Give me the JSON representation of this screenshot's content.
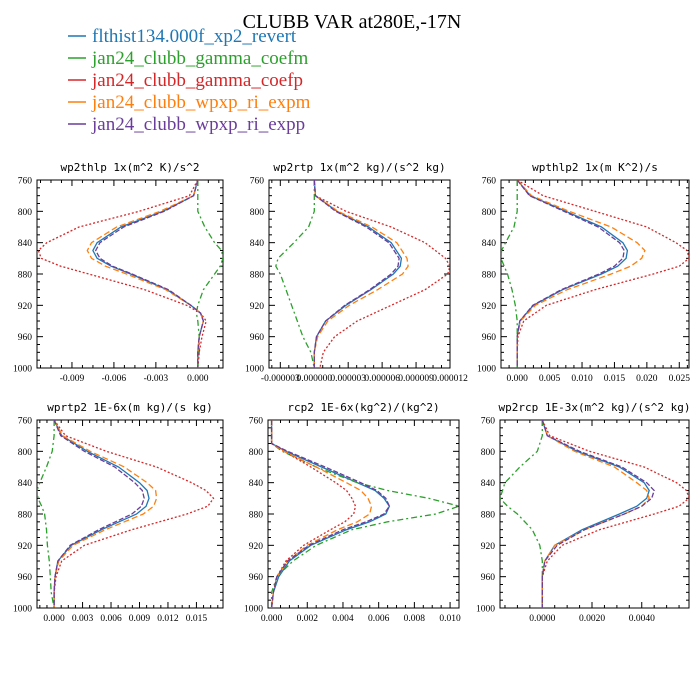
{
  "figure": {
    "title": "CLUBB VAR at280E,-17N"
  },
  "legend": [
    {
      "name": "flthist134.000f_xp2_revert",
      "color": "#1f77b4"
    },
    {
      "name": "jan24_clubb_gamma_coefm",
      "color": "#2ca02c"
    },
    {
      "name": "jan24_clubb_gamma_coefp",
      "color": "#d62728"
    },
    {
      "name": "jan24_clubb_wpxp_ri_expm",
      "color": "#ff7f0e"
    },
    {
      "name": "jan24_clubb_wpxp_ri_expp",
      "color": "#6a3d9a"
    }
  ],
  "chart_data": [
    {
      "type": "line",
      "title": "wp2thlp  1x(m^2 K)/s^2",
      "xlim": [
        -0.0115,
        0.0018
      ],
      "ylim": [
        760,
        1000
      ],
      "y_reversed": true,
      "xticks": [
        -0.009,
        -0.006,
        -0.003,
        0.0
      ],
      "xtick_labels": [
        "-0.009",
        "-0.006",
        "-0.003",
        "0.000"
      ],
      "yticks": [
        760,
        800,
        840,
        880,
        920,
        960,
        1000
      ],
      "y": [
        760,
        780,
        800,
        820,
        840,
        850,
        860,
        870,
        880,
        900,
        920,
        930,
        940,
        960,
        980,
        1000
      ],
      "series": [
        {
          "name": "flthist134.000f_xp2_revert",
          "color": "#1f77b4",
          "dash": "none",
          "x": [
            0.0,
            -0.0003,
            -0.0025,
            -0.0055,
            -0.0072,
            -0.0075,
            -0.0072,
            -0.0062,
            -0.0048,
            -0.0022,
            -0.0005,
            0.0002,
            0.0004,
            0.0001,
            0.0,
            0.0
          ]
        },
        {
          "name": "jan24_clubb_gamma_coefm",
          "color": "#2ca02c",
          "dash": "6,3,2,3",
          "x": [
            0.0,
            0.0,
            0.0,
            0.0005,
            0.0012,
            0.0017,
            0.0018,
            0.0016,
            0.0012,
            0.0004,
            0.0,
            -0.0001,
            0.0,
            0.0001,
            0.0001,
            0.0
          ]
        },
        {
          "name": "jan24_clubb_gamma_coefp",
          "color": "#d62728",
          "dash": "2,2",
          "x": [
            0.0,
            -0.0006,
            -0.0042,
            -0.0085,
            -0.0108,
            -0.0114,
            -0.0112,
            -0.0098,
            -0.0078,
            -0.0038,
            -0.0008,
            0.0002,
            0.0006,
            0.0003,
            0.0001,
            0.0
          ]
        },
        {
          "name": "jan24_clubb_wpxp_ri_expm",
          "color": "#ff7f0e",
          "dash": "6,3",
          "x": [
            0.0,
            -0.0003,
            -0.0027,
            -0.0058,
            -0.0076,
            -0.0079,
            -0.0076,
            -0.0066,
            -0.0051,
            -0.0023,
            -0.0005,
            0.0002,
            0.0004,
            0.0001,
            0.0,
            0.0
          ]
        },
        {
          "name": "jan24_clubb_wpxp_ri_expp",
          "color": "#6a3d9a",
          "dash": "5,2",
          "x": [
            0.0,
            -0.0003,
            -0.0024,
            -0.0053,
            -0.007,
            -0.0073,
            -0.007,
            -0.0061,
            -0.0047,
            -0.0021,
            -0.0005,
            0.0002,
            0.0004,
            0.0001,
            0.0,
            0.0
          ]
        }
      ]
    },
    {
      "type": "line",
      "title": "wp2rtp  1x(m^2 kg)/(s^2 kg)",
      "xlim": [
        -4e-06,
        1.2e-05
      ],
      "ylim": [
        760,
        1000
      ],
      "y_reversed": true,
      "xticks": [
        -3e-06,
        0.0,
        3e-06,
        6e-06,
        9e-06,
        1.2e-05
      ],
      "xtick_labels": [
        "-0.000003",
        "0.000000",
        "0.000003",
        "0.000006",
        "0.000009",
        "0.000012"
      ],
      "yticks": [
        760,
        800,
        840,
        880,
        920,
        960,
        1000
      ],
      "y": [
        760,
        780,
        800,
        820,
        840,
        860,
        870,
        880,
        900,
        920,
        940,
        960,
        980,
        1000
      ],
      "series": [
        {
          "name": "flthist134.000f_xp2_revert",
          "color": "#1f77b4",
          "dash": "none",
          "x": [
            0.0,
            1e-07,
            2e-06,
            4.8e-06,
            6.8e-06,
            7.7e-06,
            7.6e-06,
            7e-06,
            5e-06,
            2.8e-06,
            1e-06,
            2e-07,
            0.0,
            0.0
          ]
        },
        {
          "name": "jan24_clubb_gamma_coefm",
          "color": "#2ca02c",
          "dash": "6,3,2,3",
          "x": [
            0.0,
            0.0,
            0.0,
            -5e-07,
            -1.8e-06,
            -3.2e-06,
            -3.4e-06,
            -3e-06,
            -2.5e-06,
            -2e-06,
            -1.5e-06,
            -1e-06,
            -3e-07,
            0.0
          ]
        },
        {
          "name": "jan24_clubb_gamma_coefp",
          "color": "#d62728",
          "dash": "2,2",
          "x": [
            0.0,
            1e-07,
            2.8e-06,
            6.8e-06,
            9.8e-06,
            1.16e-05,
            1.2e-05,
            1.18e-05,
            9.8e-06,
            6.8e-06,
            3.8e-06,
            1.8e-06,
            8e-07,
            5e-07
          ]
        },
        {
          "name": "jan24_clubb_wpxp_ri_expm",
          "color": "#ff7f0e",
          "dash": "6,3",
          "x": [
            0.0,
            1e-07,
            2.1e-06,
            5.1e-06,
            7.3e-06,
            8.2e-06,
            8.3e-06,
            7.8e-06,
            5.6e-06,
            3.1e-06,
            1.2e-06,
            3e-07,
            0.0,
            0.0
          ]
        },
        {
          "name": "jan24_clubb_wpxp_ri_expp",
          "color": "#6a3d9a",
          "dash": "5,2",
          "x": [
            0.0,
            1e-07,
            1.9e-06,
            4.6e-06,
            6.6e-06,
            7.5e-06,
            7.4e-06,
            6.8e-06,
            4.9e-06,
            2.7e-06,
            1e-06,
            2e-07,
            0.0,
            0.0
          ]
        }
      ]
    },
    {
      "type": "line",
      "title": "wpthlp2  1x(m K^2)/s",
      "xlim": [
        -0.0025,
        0.0265
      ],
      "ylim": [
        760,
        1000
      ],
      "y_reversed": true,
      "xticks": [
        0.0,
        0.005,
        0.01,
        0.015,
        0.02,
        0.025
      ],
      "xtick_labels": [
        "0.000",
        "0.005",
        "0.010",
        "0.015",
        "0.020",
        "0.025"
      ],
      "yticks": [
        760,
        800,
        840,
        880,
        920,
        960,
        1000
      ],
      "y": [
        760,
        780,
        800,
        820,
        840,
        850,
        860,
        870,
        880,
        900,
        920,
        940,
        960,
        980,
        1000
      ],
      "series": [
        {
          "name": "flthist134.000f_xp2_revert",
          "color": "#1f77b4",
          "dash": "none",
          "x": [
            0.0,
            0.002,
            0.0075,
            0.013,
            0.0163,
            0.017,
            0.0168,
            0.0155,
            0.013,
            0.007,
            0.0025,
            0.0004,
            0.0,
            0.0,
            0.0
          ]
        },
        {
          "name": "jan24_clubb_gamma_coefm",
          "color": "#2ca02c",
          "dash": "6,3,2,3",
          "x": [
            0.0,
            0.0,
            0.0,
            -0.0005,
            -0.0018,
            -0.0024,
            -0.0025,
            -0.002,
            -0.0015,
            -0.0008,
            -0.0003,
            0.0,
            0.0,
            0.0,
            0.0
          ]
        },
        {
          "name": "jan24_clubb_gamma_coefp",
          "color": "#d62728",
          "dash": "2,2",
          "x": [
            0.0,
            0.004,
            0.012,
            0.02,
            0.0245,
            0.0262,
            0.0265,
            0.025,
            0.021,
            0.012,
            0.0045,
            0.001,
            0.0001,
            0.0,
            0.0
          ]
        },
        {
          "name": "jan24_clubb_wpxp_ri_expm",
          "color": "#ff7f0e",
          "dash": "6,3",
          "x": [
            0.0,
            0.0022,
            0.008,
            0.0145,
            0.0185,
            0.0197,
            0.0192,
            0.0175,
            0.0145,
            0.0077,
            0.0028,
            0.0005,
            0.0,
            0.0,
            0.0
          ]
        },
        {
          "name": "jan24_clubb_wpxp_ri_expp",
          "color": "#6a3d9a",
          "dash": "5,2",
          "x": [
            0.0,
            0.0019,
            0.0072,
            0.0125,
            0.0158,
            0.0165,
            0.0163,
            0.015,
            0.0126,
            0.0068,
            0.0024,
            0.0004,
            0.0,
            0.0,
            0.0
          ]
        }
      ]
    },
    {
      "type": "line",
      "title": "wprtp2  1E-6x(m kg)/(s kg)",
      "xlim": [
        -0.0018,
        0.0178
      ],
      "ylim": [
        760,
        1000
      ],
      "y_reversed": true,
      "xticks": [
        0.0,
        0.003,
        0.006,
        0.009,
        0.012,
        0.015
      ],
      "xtick_labels": [
        "0.000",
        "0.003",
        "0.006",
        "0.009",
        "0.012",
        "0.015"
      ],
      "yticks": [
        760,
        800,
        840,
        880,
        920,
        960,
        1000
      ],
      "y": [
        760,
        780,
        800,
        820,
        840,
        850,
        860,
        870,
        880,
        900,
        920,
        940,
        960,
        980,
        1000
      ],
      "series": [
        {
          "name": "flthist134.000f_xp2_revert",
          "color": "#1f77b4",
          "dash": "none",
          "x": [
            0.0,
            0.0008,
            0.0035,
            0.0068,
            0.009,
            0.0098,
            0.01,
            0.0097,
            0.0087,
            0.005,
            0.0018,
            0.0004,
            0.0001,
            0.0,
            0.0
          ]
        },
        {
          "name": "jan24_clubb_gamma_coefm",
          "color": "#2ca02c",
          "dash": "6,3,2,3",
          "x": [
            0.0,
            0.0,
            -0.0002,
            -0.0008,
            -0.0015,
            -0.0018,
            -0.0017,
            -0.0013,
            -0.001,
            -0.0008,
            -0.0007,
            -0.0005,
            -0.0004,
            -0.0003,
            0.0
          ]
        },
        {
          "name": "jan24_clubb_gamma_coefp",
          "color": "#d62728",
          "dash": "2,2",
          "x": [
            0.0,
            0.0012,
            0.0055,
            0.0108,
            0.0145,
            0.016,
            0.0168,
            0.0162,
            0.014,
            0.0082,
            0.0032,
            0.0008,
            0.0002,
            0.0,
            0.0
          ]
        },
        {
          "name": "jan24_clubb_wpxp_ri_expm",
          "color": "#ff7f0e",
          "dash": "6,3",
          "x": [
            0.0,
            0.0009,
            0.0038,
            0.0074,
            0.0098,
            0.0107,
            0.0108,
            0.0105,
            0.0094,
            0.0054,
            0.002,
            0.0005,
            0.0001,
            0.0,
            0.0
          ]
        },
        {
          "name": "jan24_clubb_wpxp_ri_expp",
          "color": "#6a3d9a",
          "dash": "5,2",
          "x": [
            0.0,
            0.0007,
            0.0032,
            0.0064,
            0.0085,
            0.0093,
            0.0095,
            0.0092,
            0.0082,
            0.0047,
            0.0017,
            0.0004,
            0.0001,
            0.0,
            0.0
          ]
        }
      ]
    },
    {
      "type": "line",
      "title": "rcp2  1E-6x(kg^2)/(kg^2)",
      "xlim": [
        -0.0002,
        0.0105
      ],
      "ylim": [
        760,
        1000
      ],
      "y_reversed": true,
      "xticks": [
        0.0,
        0.002,
        0.004,
        0.006,
        0.008,
        0.01
      ],
      "xtick_labels": [
        "0.000",
        "0.002",
        "0.004",
        "0.006",
        "0.008",
        "0.010"
      ],
      "yticks": [
        760,
        800,
        840,
        880,
        920,
        960,
        1000
      ],
      "y": [
        760,
        790,
        800,
        820,
        840,
        850,
        860,
        870,
        880,
        890,
        900,
        920,
        940,
        960,
        980,
        1000
      ],
      "series": [
        {
          "name": "flthist134.000f_xp2_revert",
          "color": "#1f77b4",
          "dash": "none",
          "x": [
            0.0,
            0.0,
            0.0008,
            0.0028,
            0.0048,
            0.0058,
            0.0063,
            0.0066,
            0.0064,
            0.0055,
            0.0042,
            0.0022,
            0.001,
            0.0004,
            0.0001,
            0.0
          ]
        },
        {
          "name": "jan24_clubb_gamma_coefm",
          "color": "#2ca02c",
          "dash": "6,3,2,3",
          "x": [
            0.0,
            0.0,
            0.0006,
            0.0025,
            0.0048,
            0.0065,
            0.0088,
            0.0105,
            0.0092,
            0.0065,
            0.0045,
            0.0025,
            0.0012,
            0.0003,
            0.0,
            0.0
          ]
        },
        {
          "name": "jan24_clubb_gamma_coefp",
          "color": "#d62728",
          "dash": "2,2",
          "x": [
            0.0,
            0.0,
            0.0007,
            0.0022,
            0.0036,
            0.0042,
            0.0045,
            0.0047,
            0.0046,
            0.0041,
            0.0033,
            0.0018,
            0.0008,
            0.0003,
            0.0001,
            0.0
          ]
        },
        {
          "name": "jan24_clubb_wpxp_ri_expm",
          "color": "#ff7f0e",
          "dash": "6,3",
          "x": [
            0.0,
            0.0,
            0.0007,
            0.0025,
            0.0042,
            0.005,
            0.0054,
            0.0056,
            0.0055,
            0.0048,
            0.0037,
            0.002,
            0.0009,
            0.0003,
            0.0001,
            0.0
          ]
        },
        {
          "name": "jan24_clubb_wpxp_ri_expp",
          "color": "#6a3d9a",
          "dash": "5,2",
          "x": [
            0.0,
            0.0,
            0.0009,
            0.003,
            0.005,
            0.0059,
            0.0064,
            0.0066,
            0.0063,
            0.0053,
            0.004,
            0.0021,
            0.0009,
            0.0003,
            0.0001,
            0.0
          ]
        }
      ]
    },
    {
      "type": "line",
      "title": "wp2rcp  1E-3x(m^2 kg)/(s^2 kg)",
      "xlim": [
        -0.0017,
        0.0059
      ],
      "ylim": [
        760,
        1000
      ],
      "y_reversed": true,
      "xticks": [
        0.0,
        0.002,
        0.004
      ],
      "xtick_labels": [
        "0.0000",
        "0.0020",
        "0.0040"
      ],
      "yticks": [
        760,
        800,
        840,
        880,
        920,
        960,
        1000
      ],
      "y": [
        760,
        780,
        800,
        820,
        840,
        850,
        860,
        870,
        880,
        900,
        920,
        940,
        960,
        980,
        1000
      ],
      "series": [
        {
          "name": "flthist134.000f_xp2_revert",
          "color": "#1f77b4",
          "dash": "none",
          "x": [
            0.0,
            0.0002,
            0.0014,
            0.0031,
            0.0041,
            0.0043,
            0.0042,
            0.0038,
            0.0031,
            0.0016,
            0.0005,
            0.0001,
            0.0,
            0.0,
            0.0
          ]
        },
        {
          "name": "jan24_clubb_gamma_coefm",
          "color": "#2ca02c",
          "dash": "6,3,2,3",
          "x": [
            0.0,
            0.0,
            -0.0002,
            -0.0009,
            -0.0015,
            -0.0016,
            -0.0017,
            -0.0014,
            -0.001,
            -0.0004,
            -0.0001,
            0.0,
            0.0,
            0.0,
            0.0
          ]
        },
        {
          "name": "jan24_clubb_gamma_coefp",
          "color": "#d62728",
          "dash": "2,2",
          "x": [
            0.0,
            0.0003,
            0.0019,
            0.0041,
            0.0054,
            0.0058,
            0.0059,
            0.0055,
            0.0045,
            0.0023,
            0.0008,
            0.0002,
            0.0,
            0.0,
            0.0
          ]
        },
        {
          "name": "jan24_clubb_wpxp_ri_expm",
          "color": "#ff7f0e",
          "dash": "6,3",
          "x": [
            0.0,
            0.0002,
            0.0013,
            0.0029,
            0.0038,
            0.0042,
            0.0043,
            0.004,
            0.0033,
            0.0017,
            0.0005,
            0.0001,
            0.0,
            0.0,
            0.0
          ]
        },
        {
          "name": "jan24_clubb_wpxp_ri_expp",
          "color": "#6a3d9a",
          "dash": "5,2",
          "x": [
            0.0,
            0.0002,
            0.0015,
            0.0032,
            0.0042,
            0.0045,
            0.0044,
            0.004,
            0.0033,
            0.0017,
            0.0006,
            0.0001,
            0.0,
            0.0,
            0.0
          ]
        }
      ]
    }
  ]
}
